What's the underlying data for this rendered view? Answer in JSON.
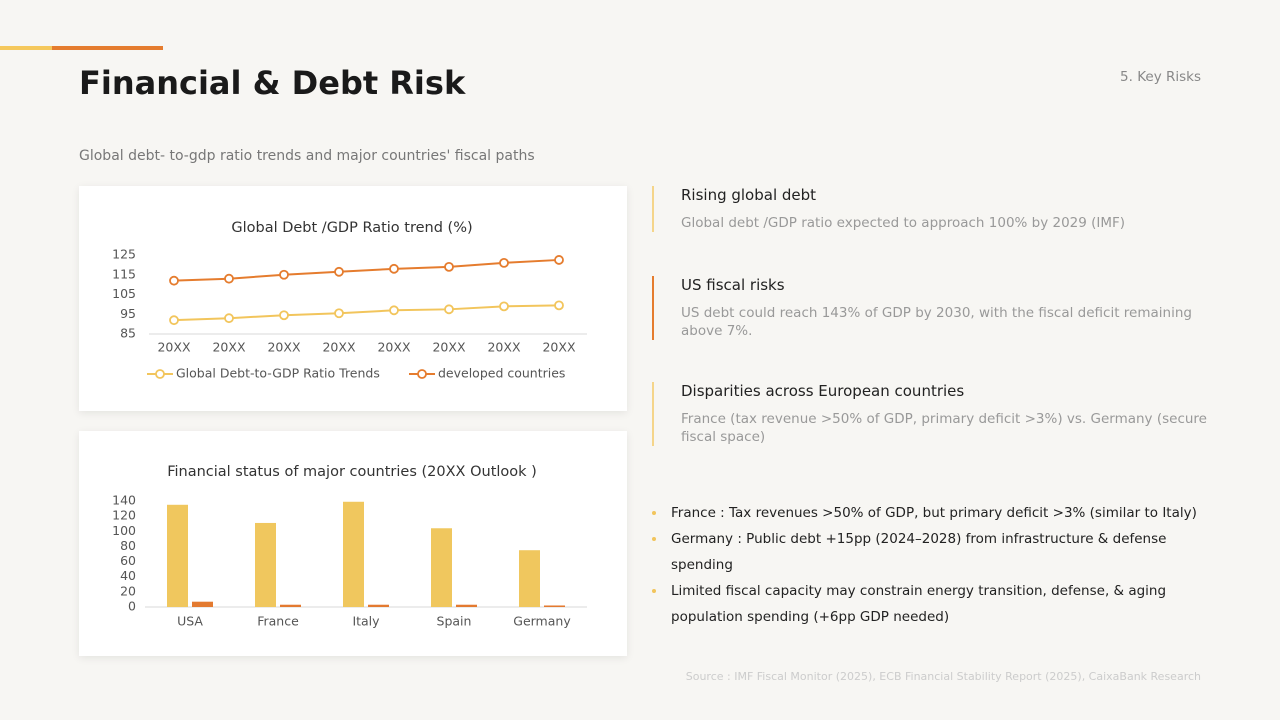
{
  "header": {
    "title": "Financial & Debt Risk",
    "section": "5. Key Risks",
    "subtitle": "Global debt- to-gdp ratio trends and major countries' fiscal paths"
  },
  "chart_data": [
    {
      "type": "line",
      "title": "Global Debt /GDP Ratio trend (%)",
      "categories": [
        "20XX",
        "20XX",
        "20XX",
        "20XX",
        "20XX",
        "20XX",
        "20XX",
        "20XX"
      ],
      "series": [
        {
          "name": "Global Debt-to-GDP Ratio Trends",
          "color": "#f2c55c",
          "values": [
            92,
            93,
            94.5,
            95.5,
            97,
            97.5,
            99,
            99.5
          ]
        },
        {
          "name": "developed countries",
          "color": "#e57c2e",
          "values": [
            112,
            113,
            115,
            116.5,
            118,
            119,
            121,
            122.5
          ]
        }
      ],
      "ylim": [
        85,
        125
      ],
      "yticks": [
        85,
        95,
        105,
        115,
        125
      ],
      "grid": false,
      "legend": "bottom"
    },
    {
      "type": "bar",
      "title": "Financial status of major countries (20XX Outlook )",
      "categories": [
        "USA",
        "France",
        "Italy",
        "Spain",
        "Germany"
      ],
      "series": [
        {
          "color": "#f0c75e",
          "values": [
            135,
            111,
            139,
            104,
            75
          ]
        },
        {
          "color": "#e37a30",
          "values": [
            7,
            3,
            3,
            3,
            2
          ]
        }
      ],
      "ylim": [
        0,
        140
      ],
      "yticks": [
        0,
        20,
        40,
        60,
        80,
        100,
        120,
        140
      ],
      "grid": false
    }
  ],
  "highlights": [
    {
      "title": "Rising global debt",
      "text": "Global debt /GDP ratio expected to approach 100% by 2029 (IMF)",
      "color": "#f5d58a"
    },
    {
      "title": "US fiscal risks",
      "text": "US debt could reach 143% of GDP by 2030, with the fiscal deficit remaining above 7%.",
      "color": "#e57c2e"
    },
    {
      "title": "Disparities across European countries",
      "text": "France (tax revenue >50% of GDP, primary deficit >3%) vs. Germany (secure fiscal space)",
      "color": "#f5d58a"
    }
  ],
  "bullets": [
    "France : Tax revenues >50% of GDP, but primary deficit >3% (similar to Italy)",
    "Germany : Public debt +15pp (2024–2028) from infrastructure & defense spending",
    "Limited fiscal capacity may constrain energy transition, defense, & aging population spending (+6pp GDP needed)"
  ],
  "source": "Source : IMF Fiscal Monitor (2025), ECB Financial Stability Report (2025), CaixaBank Research"
}
